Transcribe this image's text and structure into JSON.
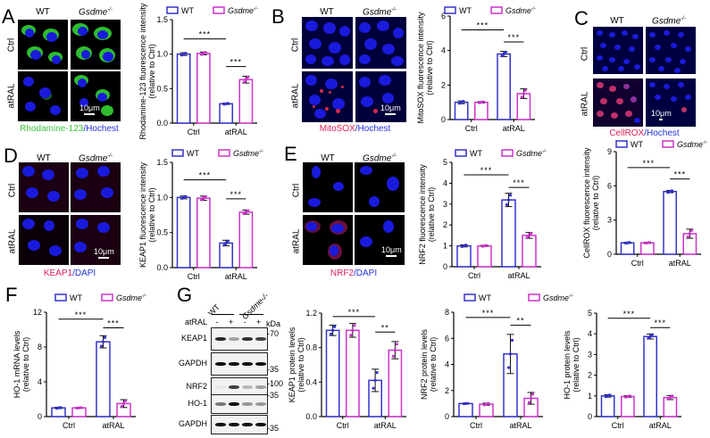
{
  "colors": {
    "wt": "#3333cc",
    "gsdme": "#cc33cc",
    "green": "#3cc43c",
    "red": "#dd2255",
    "blue": "#2233dd"
  },
  "legend": {
    "wt": "WT",
    "gsdme": "Gsdme",
    "gsdme_sup": "-/-"
  },
  "panels": {
    "A": {
      "letter": "A",
      "col_wt": "WT",
      "col_ko": "Gsdme",
      "col_ko_sup": "-/-",
      "row_ctrl": "Ctrl",
      "row_atral": "atRAL",
      "scale": "10μm",
      "stain_1": "Rhodamine-123",
      "stain_sep": "/",
      "stain_2": "Hochest"
    },
    "B": {
      "letter": "B",
      "col_wt": "WT",
      "col_ko": "Gsdme",
      "col_ko_sup": "-/-",
      "row_ctrl": "Ctrl",
      "row_atral": "atRAL",
      "scale": "10μm",
      "stain_1": "MitoSOX",
      "stain_sep": "/",
      "stain_2": "Hochest"
    },
    "C": {
      "letter": "C",
      "col_wt": "WT",
      "col_ko": "Gsdme",
      "col_ko_sup": "-/-",
      "row_ctrl": "Ctrl",
      "row_atral": "atRAL",
      "scale": "10μm",
      "stain_1": "CellROX",
      "stain_sep": "/",
      "stain_2": "Hochest"
    },
    "D": {
      "letter": "D",
      "col_wt": "WT",
      "col_ko": "Gsdme",
      "col_ko_sup": "-/-",
      "row_ctrl": "Ctrl",
      "row_atral": "atRAL",
      "scale": "10μm",
      "stain_1": "KEAP1",
      "stain_sep": "/",
      "stain_2": "DAPI"
    },
    "E": {
      "letter": "E",
      "col_wt": "WT",
      "col_ko": "Gsdme",
      "col_ko_sup": "-/-",
      "row_ctrl": "Ctrl",
      "row_atral": "atRAL",
      "scale": "10μm",
      "stain_1": "NRF2",
      "stain_sep": "/",
      "stain_2": "DAPI"
    },
    "F": {
      "letter": "F"
    },
    "G": {
      "letter": "G",
      "group_wt": "WT",
      "group_ko": "Gsdme-/-",
      "treatment_label": "atRAL",
      "lanes": [
        "-",
        "+",
        "-",
        "+"
      ],
      "kda_label": "kDa",
      "blots": [
        {
          "name": "KEAP1",
          "kda": "-70",
          "bands": [
            0.9,
            0.35,
            0.85,
            0.8
          ]
        },
        {
          "name": "GAPDH",
          "kda": "-35",
          "bands": [
            1,
            1,
            1,
            1
          ]
        },
        {
          "name": "NRF2",
          "kda": "-100",
          "bands": [
            0.05,
            0.8,
            0.25,
            0.35
          ]
        },
        {
          "name": "HO-1",
          "kda": "-35",
          "bands": [
            0.55,
            1,
            0.4,
            0.4
          ]
        },
        {
          "name": "GAPDH",
          "kda": "-35",
          "bands": [
            1,
            1,
            1,
            1
          ]
        }
      ]
    }
  },
  "chart_data": [
    {
      "id": "A",
      "type": "bar",
      "title": "",
      "ylabel": "Rhodamine-123 fluorescence intensity (relative to Ctrl)",
      "ylabel_1": "Rhodamine-123 fluorescence intensity",
      "ylabel_2": "(relative to Ctrl)",
      "xlabel": "",
      "categories": [
        "Ctrl",
        "atRAL"
      ],
      "ylim": [
        0,
        1.5
      ],
      "yticks": [
        "0.0",
        "0.5",
        "1.0",
        "1.5"
      ],
      "ytick_vals": [
        0,
        0.5,
        1.0,
        1.5
      ],
      "series": [
        {
          "name": "WT",
          "values": [
            1.0,
            0.28
          ],
          "err": [
            0.02,
            0.01
          ]
        },
        {
          "name": "Gsdme-/-",
          "values": [
            1.01,
            0.63
          ],
          "err": [
            0.02,
            0.05
          ]
        }
      ],
      "sig": [
        {
          "label": "***",
          "from": "Ctrl-WT",
          "to": "atRAL-WT",
          "y": 1.22
        },
        {
          "label": "***",
          "from": "atRAL-WT",
          "to": "atRAL-Gsdme",
          "y": 0.82
        }
      ]
    },
    {
      "id": "B",
      "type": "bar",
      "title": "",
      "ylabel": "MitoSOX fluorescence intensity (relative to Ctrl)",
      "ylabel_1": "MitoSOX fluorescence intensity",
      "ylabel_2": "(relative to Ctrl)",
      "xlabel": "",
      "categories": [
        "Ctrl",
        "atRAL"
      ],
      "ylim": [
        0,
        6
      ],
      "yticks": [
        "0",
        "2",
        "4",
        "6"
      ],
      "ytick_vals": [
        0,
        2,
        4,
        6
      ],
      "series": [
        {
          "name": "WT",
          "values": [
            1.0,
            3.8
          ],
          "err": [
            0.08,
            0.15
          ]
        },
        {
          "name": "Gsdme-/-",
          "values": [
            1.0,
            1.5
          ],
          "err": [
            0.04,
            0.28
          ]
        }
      ],
      "sig": [
        {
          "label": "***",
          "from": "Ctrl-WT",
          "to": "atRAL-WT",
          "y": 5.2
        },
        {
          "label": "***",
          "from": "atRAL-WT",
          "to": "atRAL-Gsdme",
          "y": 4.5
        }
      ]
    },
    {
      "id": "C",
      "type": "bar",
      "title": "",
      "ylabel": "CellROX fluorescence intensity (relative to Ctrl)",
      "ylabel_1": "CellROX fluorescence intensity",
      "ylabel_2": "(relative to Ctrl)",
      "xlabel": "",
      "categories": [
        "Ctrl",
        "atRAL"
      ],
      "ylim": [
        0,
        9
      ],
      "yticks": [
        "0",
        "3",
        "6",
        "9"
      ],
      "ytick_vals": [
        0,
        3,
        6,
        9
      ],
      "series": [
        {
          "name": "WT",
          "values": [
            1.0,
            5.5
          ],
          "err": [
            0.05,
            0.1
          ]
        },
        {
          "name": "Gsdme-/-",
          "values": [
            1.0,
            1.8
          ],
          "err": [
            0.04,
            0.4
          ]
        }
      ],
      "sig": [
        {
          "label": "***",
          "from": "Ctrl-WT",
          "to": "atRAL-WT",
          "y": 7.6
        },
        {
          "label": "***",
          "from": "atRAL-WT",
          "to": "atRAL-Gsdme",
          "y": 6.6
        }
      ]
    },
    {
      "id": "D",
      "type": "bar",
      "title": "",
      "ylabel": "KEAP1 fluorescence intensity (relative to Ctrl)",
      "ylabel_1": "KEAP1 fluorescence intensity",
      "ylabel_2": "(relative to Ctrl)",
      "xlabel": "",
      "categories": [
        "Ctrl",
        "atRAL"
      ],
      "ylim": [
        0,
        1.5
      ],
      "yticks": [
        "0.0",
        "0.5",
        "1.0",
        "1.5"
      ],
      "ytick_vals": [
        0,
        0.5,
        1.0,
        1.5
      ],
      "series": [
        {
          "name": "WT",
          "values": [
            1.0,
            0.35
          ],
          "err": [
            0.02,
            0.04
          ]
        },
        {
          "name": "Gsdme-/-",
          "values": [
            0.99,
            0.79
          ],
          "err": [
            0.03,
            0.03
          ]
        }
      ],
      "sig": [
        {
          "label": "***",
          "from": "Ctrl-WT",
          "to": "atRAL-WT",
          "y": 1.25
        },
        {
          "label": "***",
          "from": "atRAL-WT",
          "to": "atRAL-Gsdme",
          "y": 0.98
        }
      ]
    },
    {
      "id": "E",
      "type": "bar",
      "title": "",
      "ylabel": "NRF2 fluorescence intensity (relative to Ctrl)",
      "ylabel_1": "NRF2 fluorescence intensity",
      "ylabel_2": "(relative to Ctrl)",
      "xlabel": "",
      "categories": [
        "Ctrl",
        "atRAL"
      ],
      "ylim": [
        0,
        5
      ],
      "yticks": [
        "0",
        "1",
        "2",
        "3",
        "4",
        "5"
      ],
      "ytick_vals": [
        0,
        1,
        2,
        3,
        4,
        5
      ],
      "series": [
        {
          "name": "WT",
          "values": [
            1.0,
            3.2
          ],
          "err": [
            0.05,
            0.32
          ]
        },
        {
          "name": "Gsdme-/-",
          "values": [
            1.0,
            1.5
          ],
          "err": [
            0.03,
            0.14
          ]
        }
      ],
      "sig": [
        {
          "label": "***",
          "from": "Ctrl-WT",
          "to": "atRAL-WT",
          "y": 4.4
        },
        {
          "label": "***",
          "from": "atRAL-WT",
          "to": "atRAL-Gsdme",
          "y": 3.8
        }
      ]
    },
    {
      "id": "F",
      "type": "bar",
      "title": "",
      "ylabel": "HO-1 mRNA levels (relative to Ctrl)",
      "ylabel_1": "HO-1 mRNA levels",
      "ylabel_2": "(relative to Ctrl)",
      "xlabel": "",
      "categories": [
        "Ctrl",
        "atRAL"
      ],
      "ylim": [
        0,
        12
      ],
      "yticks": [
        "0",
        "4",
        "8",
        "12"
      ],
      "ytick_vals": [
        0,
        4,
        8,
        12
      ],
      "series": [
        {
          "name": "WT",
          "values": [
            1.0,
            8.6
          ],
          "err": [
            0.08,
            0.7
          ]
        },
        {
          "name": "Gsdme-/-",
          "values": [
            1.0,
            1.5
          ],
          "err": [
            0.04,
            0.45
          ]
        }
      ],
      "sig": [
        {
          "label": "***",
          "from": "Ctrl-WT",
          "to": "atRAL-WT",
          "y": 11.2
        },
        {
          "label": "***",
          "from": "atRAL-WT",
          "to": "atRAL-Gsdme",
          "y": 10.2
        }
      ]
    },
    {
      "id": "G1",
      "type": "bar",
      "title": "",
      "ylabel": "KEAP1 protein levels (relative to Ctrl)",
      "ylabel_1": "KEAP1 protein levels",
      "ylabel_2": "(relative to Ctrl)",
      "xlabel": "",
      "categories": [
        "Ctrl",
        "atRAL"
      ],
      "ylim": [
        0,
        1.2
      ],
      "yticks": [
        "0.0",
        "0.4",
        "0.8",
        "1.2"
      ],
      "ytick_vals": [
        0,
        0.4,
        0.8,
        1.2
      ],
      "series": [
        {
          "name": "WT",
          "values": [
            1.0,
            0.42
          ],
          "err": [
            0.06,
            0.13
          ]
        },
        {
          "name": "Gsdme-/-",
          "values": [
            1.0,
            0.77
          ],
          "err": [
            0.08,
            0.1
          ]
        }
      ],
      "sig": [
        {
          "label": "***",
          "from": "Ctrl-WT",
          "to": "atRAL-WT",
          "y": 1.16
        },
        {
          "label": "**",
          "from": "atRAL-WT",
          "to": "atRAL-Gsdme",
          "y": 0.98
        }
      ]
    },
    {
      "id": "G2",
      "type": "bar",
      "title": "",
      "ylabel": "NRF2 protein levels (relative to Ctrl)",
      "ylabel_1": "NRF2 protein levels",
      "ylabel_2": "(relative to Ctrl)",
      "xlabel": "",
      "categories": [
        "Ctrl",
        "atRAL"
      ],
      "ylim": [
        0,
        8
      ],
      "yticks": [
        "0",
        "2",
        "4",
        "6",
        "8"
      ],
      "ytick_vals": [
        0,
        2,
        4,
        6,
        8
      ],
      "series": [
        {
          "name": "WT",
          "values": [
            1.0,
            4.8
          ],
          "err": [
            0.02,
            1.5
          ]
        },
        {
          "name": "Gsdme-/-",
          "values": [
            0.95,
            1.4
          ],
          "err": [
            0.08,
            0.45
          ]
        }
      ],
      "sig": [
        {
          "label": "***",
          "from": "Ctrl-WT",
          "to": "atRAL-WT",
          "y": 7.6
        },
        {
          "label": "**",
          "from": "atRAL-WT",
          "to": "atRAL-Gsdme",
          "y": 7.0
        }
      ]
    },
    {
      "id": "G3",
      "type": "bar",
      "title": "",
      "ylabel": "HO-1 protein levels (relative to Ctrl)",
      "ylabel_1": "HO-1 protein levels",
      "ylabel_2": "(relative to Ctrl)",
      "xlabel": "",
      "categories": [
        "Ctrl",
        "atRAL"
      ],
      "ylim": [
        0,
        5
      ],
      "yticks": [
        "0",
        "1",
        "2",
        "3",
        "4",
        "5"
      ],
      "ytick_vals": [
        0,
        1,
        2,
        3,
        4,
        5
      ],
      "series": [
        {
          "name": "WT",
          "values": [
            1.0,
            3.87
          ],
          "err": [
            0.06,
            0.12
          ]
        },
        {
          "name": "Gsdme-/-",
          "values": [
            0.97,
            0.92
          ],
          "err": [
            0.04,
            0.1
          ]
        }
      ],
      "sig": [
        {
          "label": "***",
          "from": "Ctrl-WT",
          "to": "atRAL-WT",
          "y": 4.75
        },
        {
          "label": "***",
          "from": "atRAL-WT",
          "to": "atRAL-Gsdme",
          "y": 4.3
        }
      ]
    }
  ]
}
